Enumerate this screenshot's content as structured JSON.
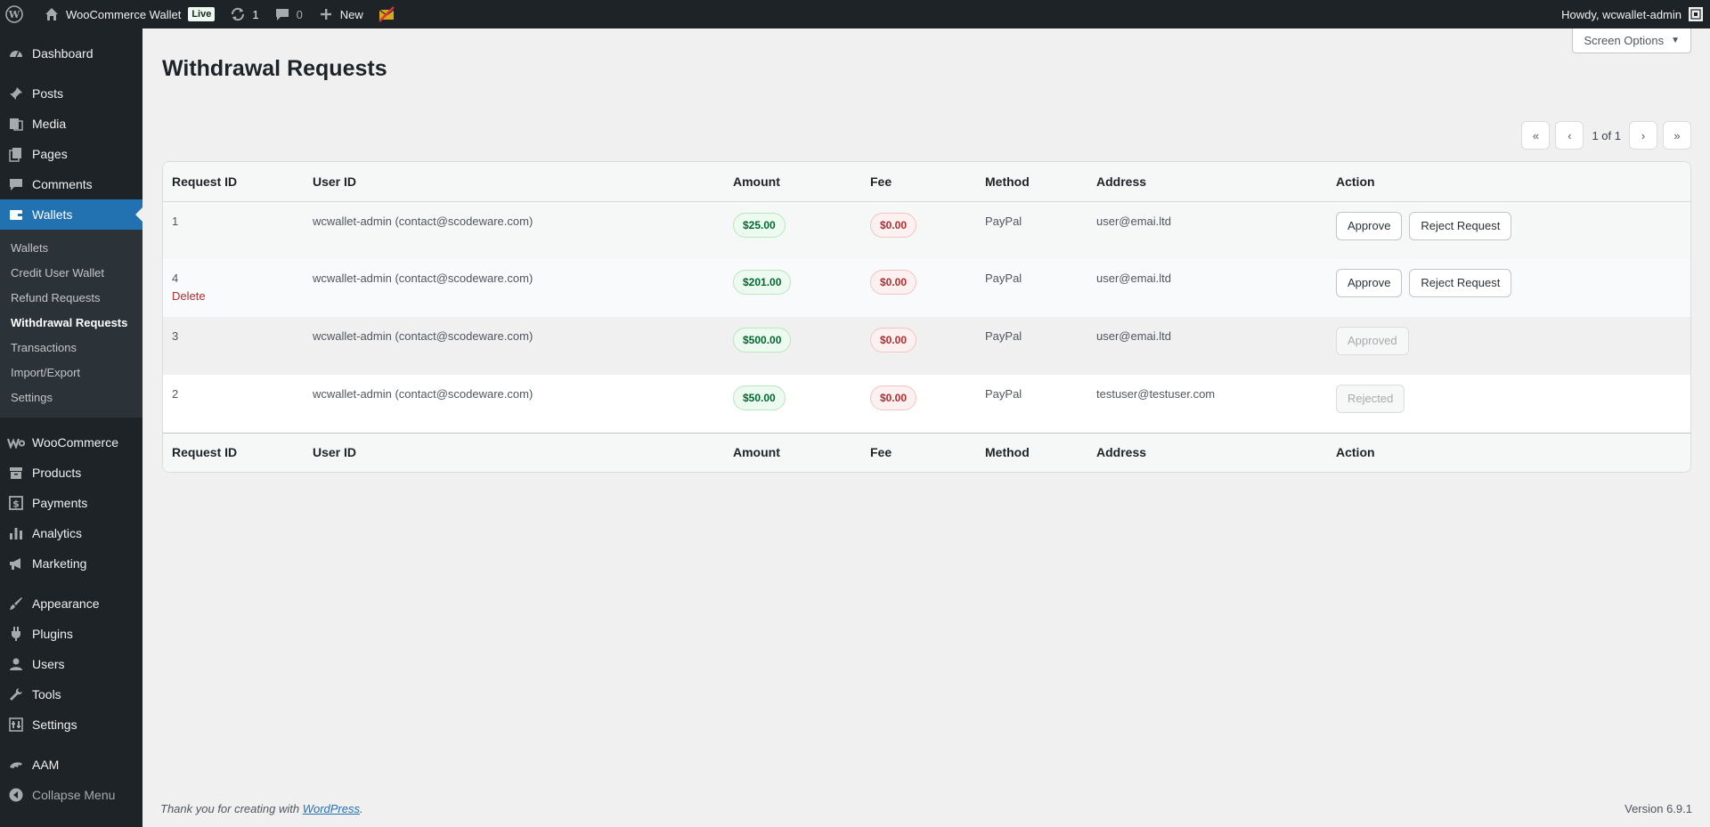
{
  "adminbar": {
    "site_name": "WooCommerce Wallet",
    "live_badge": "Live",
    "updates_count": "1",
    "comments_count": "0",
    "new_label": "New",
    "howdy": "Howdy, wcwallet-admin"
  },
  "sidebar": {
    "items": [
      {
        "label": "Dashboard",
        "icon": "dashboard-icon"
      },
      {
        "label": "Posts",
        "icon": "pin-icon"
      },
      {
        "label": "Media",
        "icon": "media-icon"
      },
      {
        "label": "Pages",
        "icon": "pages-icon"
      },
      {
        "label": "Comments",
        "icon": "comment-icon"
      },
      {
        "label": "Wallets",
        "icon": "wallet-icon"
      },
      {
        "label": "WooCommerce",
        "icon": "woocommerce-icon"
      },
      {
        "label": "Products",
        "icon": "archive-icon"
      },
      {
        "label": "Payments",
        "icon": "dollar-icon"
      },
      {
        "label": "Analytics",
        "icon": "chart-bar-icon"
      },
      {
        "label": "Marketing",
        "icon": "megaphone-icon"
      },
      {
        "label": "Appearance",
        "icon": "brush-icon"
      },
      {
        "label": "Plugins",
        "icon": "plug-icon"
      },
      {
        "label": "Users",
        "icon": "user-icon"
      },
      {
        "label": "Tools",
        "icon": "wrench-icon"
      },
      {
        "label": "Settings",
        "icon": "settings-icon"
      },
      {
        "label": "AAM",
        "icon": "aam-icon"
      },
      {
        "label": "Collapse Menu",
        "icon": "collapse-icon"
      }
    ],
    "submenu": [
      "Wallets",
      "Credit User Wallet",
      "Refund Requests",
      "Withdrawal Requests",
      "Transactions",
      "Import/Export",
      "Settings"
    ]
  },
  "screen_options": "Screen Options",
  "page_title": "Withdrawal Requests",
  "pagination": {
    "first": "«",
    "prev": "‹",
    "text": "1 of 1",
    "next": "›",
    "last": "»"
  },
  "table": {
    "columns": [
      "Request ID",
      "User ID",
      "Amount",
      "Fee",
      "Method",
      "Address",
      "Action"
    ],
    "rows": [
      {
        "id": "1",
        "user": "wcwallet-admin (contact@scodeware.com)",
        "amount": "$25.00",
        "fee": "$0.00",
        "method": "PayPal",
        "address": "user@emai.ltd",
        "row_action": "",
        "approve": "Approve",
        "reject": "Reject Request",
        "status": ""
      },
      {
        "id": "4",
        "user": "wcwallet-admin (contact@scodeware.com)",
        "amount": "$201.00",
        "fee": "$0.00",
        "method": "PayPal",
        "address": "user@emai.ltd",
        "row_action": "Delete",
        "approve": "Approve",
        "reject": "Reject Request",
        "status": ""
      },
      {
        "id": "3",
        "user": "wcwallet-admin (contact@scodeware.com)",
        "amount": "$500.00",
        "fee": "$0.00",
        "method": "PayPal",
        "address": "user@emai.ltd",
        "row_action": "",
        "approve": "",
        "reject": "",
        "status": "Approved"
      },
      {
        "id": "2",
        "user": "wcwallet-admin (contact@scodeware.com)",
        "amount": "$50.00",
        "fee": "$0.00",
        "method": "PayPal",
        "address": "testuser@testuser.com",
        "row_action": "",
        "approve": "",
        "reject": "",
        "status": "Rejected"
      }
    ]
  },
  "footer": {
    "thanks_prefix": "Thank you for creating with ",
    "thanks_link": "WordPress",
    "thanks_suffix": ".",
    "version": "Version 6.9.1"
  }
}
